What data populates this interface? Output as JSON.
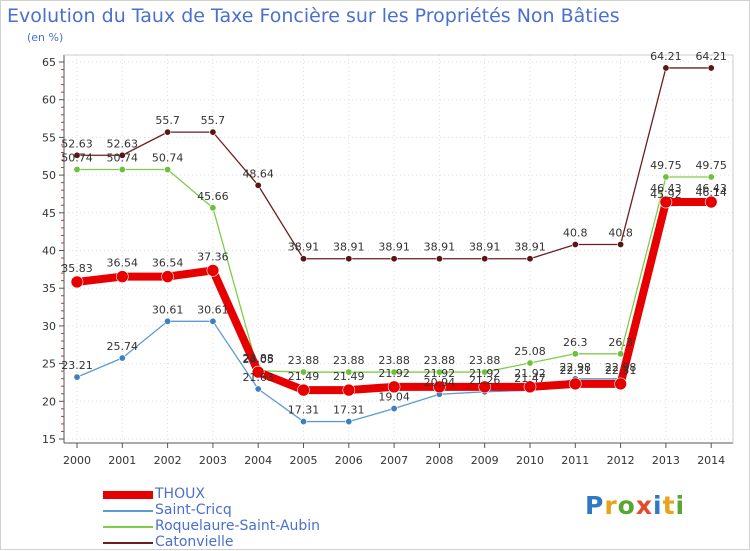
{
  "title": "Evolution du Taux de Taxe Foncière sur les Propriétés Non Bâties",
  "subtitle": "(en %)",
  "brand": {
    "text": "Proxiti",
    "colors": [
      "#2f79c4",
      "#e8a21b",
      "#5aa632",
      "#e04d2c",
      "#2f79c4",
      "#e8a21b",
      "#5aa632"
    ]
  },
  "chart_data": {
    "type": "line",
    "title": "Evolution du Taux de Taxe Foncière sur les Propriétés Non Bâties",
    "ylabel": "(en %)",
    "xlabel": "",
    "x": [
      "2000",
      "2001",
      "2002",
      "2003",
      "2004",
      "2005",
      "2006",
      "2007",
      "2008",
      "2009",
      "2010",
      "2011",
      "2012",
      "2013",
      "2014"
    ],
    "ylim": [
      15,
      65
    ],
    "yticks": [
      "15",
      "20",
      "25",
      "30",
      "35",
      "40",
      "45",
      "50",
      "55",
      "60",
      "65"
    ],
    "grid": true,
    "series": [
      {
        "name": "Catonvielle",
        "color": "#6b1f1f",
        "dot": "#5a1515",
        "width": 1.3,
        "radius": 3.2,
        "values": [
          52.63,
          52.63,
          55.7,
          55.7,
          48.64,
          38.91,
          38.91,
          38.91,
          38.91,
          38.91,
          38.91,
          40.8,
          40.8,
          64.21,
          64.21
        ],
        "labels": [
          "52.63",
          "52.63",
          "55.7",
          "55.7",
          "48.64",
          "38.91",
          "38.91",
          "38.91",
          "38.91",
          "38.91",
          "38.91",
          "40.8",
          "40.8",
          "64.21",
          "64.21"
        ]
      },
      {
        "name": "Roquelaure-Saint-Aubin",
        "color": "#80cc4a",
        "dot": "#6cc03a",
        "width": 1.3,
        "radius": 3.2,
        "values": [
          50.74,
          50.74,
          50.74,
          45.66,
          24.05,
          23.88,
          23.88,
          23.88,
          23.88,
          23.88,
          25.08,
          26.3,
          26.3,
          49.75,
          49.75
        ],
        "labels": [
          "50.74",
          "50.74",
          "50.74",
          "45.66",
          "24.05",
          "23.88",
          "23.88",
          "23.88",
          "23.88",
          "23.88",
          "25.08",
          "26.3",
          "26.3",
          "49.75",
          "49.75"
        ]
      },
      {
        "name": "Saint-Cricq",
        "color": "#5b9bd5",
        "dot": "#3f7fc0",
        "width": 1.3,
        "radius": 3.2,
        "values": [
          23.21,
          25.74,
          30.61,
          30.61,
          21.63,
          17.31,
          17.31,
          19.04,
          20.94,
          21.26,
          21.47,
          22.98,
          22.98,
          45.92,
          46.14
        ],
        "labels": [
          "23.21",
          "25.74",
          "30.61",
          "30.61",
          "21.63",
          "17.31",
          "17.31",
          "19.04",
          "20.94",
          "21.26",
          "21.47",
          "22.98",
          "22.98",
          "45.92",
          "46.14"
        ]
      },
      {
        "name": "THOUX",
        "color": "#e60000",
        "dot": "#e60000",
        "width": 8,
        "radius": 6,
        "values": [
          35.83,
          36.54,
          36.54,
          37.36,
          23.88,
          21.49,
          21.49,
          21.92,
          21.92,
          21.92,
          21.92,
          22.31,
          22.31,
          46.43,
          46.43
        ],
        "labels": [
          "35.83",
          "36.54",
          "36.54",
          "37.36",
          "23.88",
          "21.49",
          "21.49",
          "21.92",
          "21.92",
          "21.92",
          "21.92",
          "22.31",
          "22.31",
          "46.43",
          "46.43"
        ]
      }
    ],
    "legend": [
      "THOUX",
      "Saint-Cricq",
      "Roquelaure-Saint-Aubin",
      "Catonvielle"
    ],
    "legend_position": "bottom-left"
  }
}
